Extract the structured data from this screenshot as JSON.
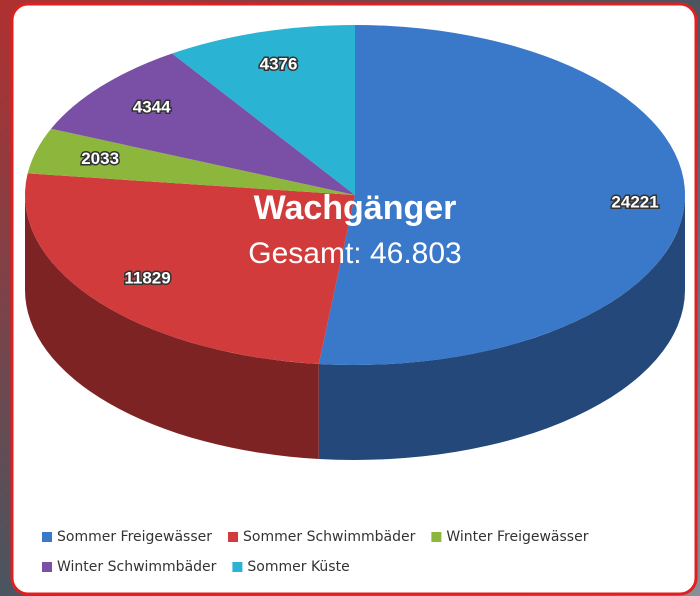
{
  "chart_data": {
    "type": "pie3d",
    "title": "Wachgänger",
    "subtitle": "Gesamt: 46.803",
    "categories": [
      "Sommer Freigewässer",
      "Sommer Schwimmbäder",
      "Winter Freigewässer",
      "Winter Schwimmbäder",
      "Sommer Küste"
    ],
    "values": [
      24221,
      11829,
      2033,
      4344,
      4376
    ],
    "colors": [
      "#3a78c9",
      "#d23b3b",
      "#8cb63c",
      "#7a4fa6",
      "#2bb3d3"
    ]
  }
}
